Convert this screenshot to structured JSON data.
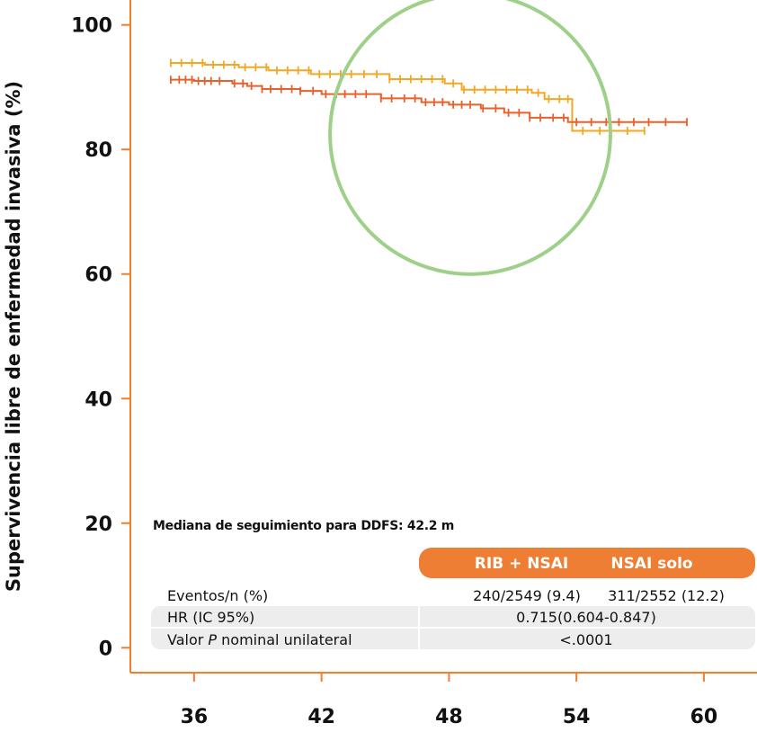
{
  "colors": {
    "axis": "#F07F2E",
    "rib_series": "#E8612C",
    "nsai_series": "#F2A825",
    "highlight_circle": "#9FD08A",
    "header_fill": "#EE7E33",
    "row_shade": "#EDEDED"
  },
  "chart_data": {
    "type": "line",
    "title": "",
    "xlabel": "",
    "ylabel": "Supervivencia libre de enfermedad invasiva (%)",
    "xlim": [
      33,
      62.5
    ],
    "ylim": [
      -4,
      104
    ],
    "x_ticks": [
      36,
      42,
      48,
      54,
      60
    ],
    "y_ticks": [
      0,
      20,
      40,
      60,
      80,
      100
    ],
    "grid": false,
    "series": [
      {
        "id": "rib",
        "name": "RIB + NSAI",
        "color": "#E8612C",
        "step": true,
        "x": [
          34.9,
          36.0,
          37.8,
          38.5,
          39.2,
          41.0,
          42.0,
          44.8,
          46.7,
          48.0,
          49.5,
          50.6,
          51.8,
          53.6,
          55.0,
          59.2
        ],
        "y": [
          91.2,
          91.0,
          90.6,
          90.2,
          89.7,
          89.4,
          88.9,
          88.2,
          87.6,
          87.2,
          86.6,
          85.9,
          85.1,
          84.4,
          84.4,
          84.4
        ],
        "censor_x": [
          34.9,
          35.3,
          35.6,
          35.9,
          36.2,
          36.5,
          36.8,
          37.2,
          37.9,
          38.3,
          38.7,
          39.2,
          39.6,
          40.1,
          40.6,
          41.0,
          41.6,
          42.2,
          42.7,
          43.1,
          43.6,
          44.1,
          44.8,
          45.3,
          45.9,
          46.4,
          46.9,
          47.3,
          47.7,
          48.2,
          48.6,
          49.0,
          49.6,
          50.2,
          50.8,
          51.3,
          51.8,
          52.3,
          52.9,
          53.4,
          54.0,
          54.7,
          55.4,
          56.0,
          56.7,
          57.4,
          58.2,
          59.2
        ]
      },
      {
        "id": "nsai",
        "name": "NSAI solo",
        "color": "#F2A825",
        "step": true,
        "x": [
          34.9,
          36.5,
          38.1,
          39.5,
          41.5,
          45.2,
          47.8,
          48.6,
          51.9,
          52.5,
          53.8,
          57.2
        ],
        "y": [
          93.9,
          93.6,
          93.2,
          92.7,
          92.1,
          91.3,
          90.6,
          89.6,
          89.1,
          88.1,
          83.0,
          83.0
        ],
        "censor_x": [
          34.9,
          35.4,
          35.9,
          36.4,
          36.9,
          37.4,
          37.9,
          38.4,
          38.9,
          39.4,
          39.9,
          40.4,
          40.9,
          41.4,
          41.9,
          42.4,
          42.9,
          43.4,
          44.0,
          44.6,
          45.2,
          45.7,
          46.2,
          46.7,
          47.2,
          47.7,
          48.2,
          48.7,
          49.2,
          49.7,
          50.2,
          50.7,
          51.2,
          51.7,
          52.2,
          52.7,
          53.2,
          53.6,
          54.3,
          55.1,
          56.4,
          57.2
        ]
      }
    ],
    "annotations": [
      {
        "type": "circle",
        "color": "#9FD08A",
        "cx": 49.0,
        "cy": 82.5,
        "r_x_units": 6.6
      }
    ]
  },
  "note": "Mediana de seguimiento para DDFS: 42.2 m",
  "table": {
    "headers": [
      "RIB + NSAI",
      "NSAI solo"
    ],
    "rows": [
      {
        "label": "Eventos/n (%)",
        "cells": [
          "240/2549 (9.4)",
          "311/2552 (12.2)"
        ],
        "shaded": false
      },
      {
        "label": "HR (IC 95%)",
        "merged": "0.715(0.604-0.847)",
        "shaded": true
      },
      {
        "label_prefix": "Valor ",
        "label_italic": "P",
        "label_suffix": " nominal unilateral",
        "merged": "<.0001",
        "shaded": true
      }
    ]
  }
}
